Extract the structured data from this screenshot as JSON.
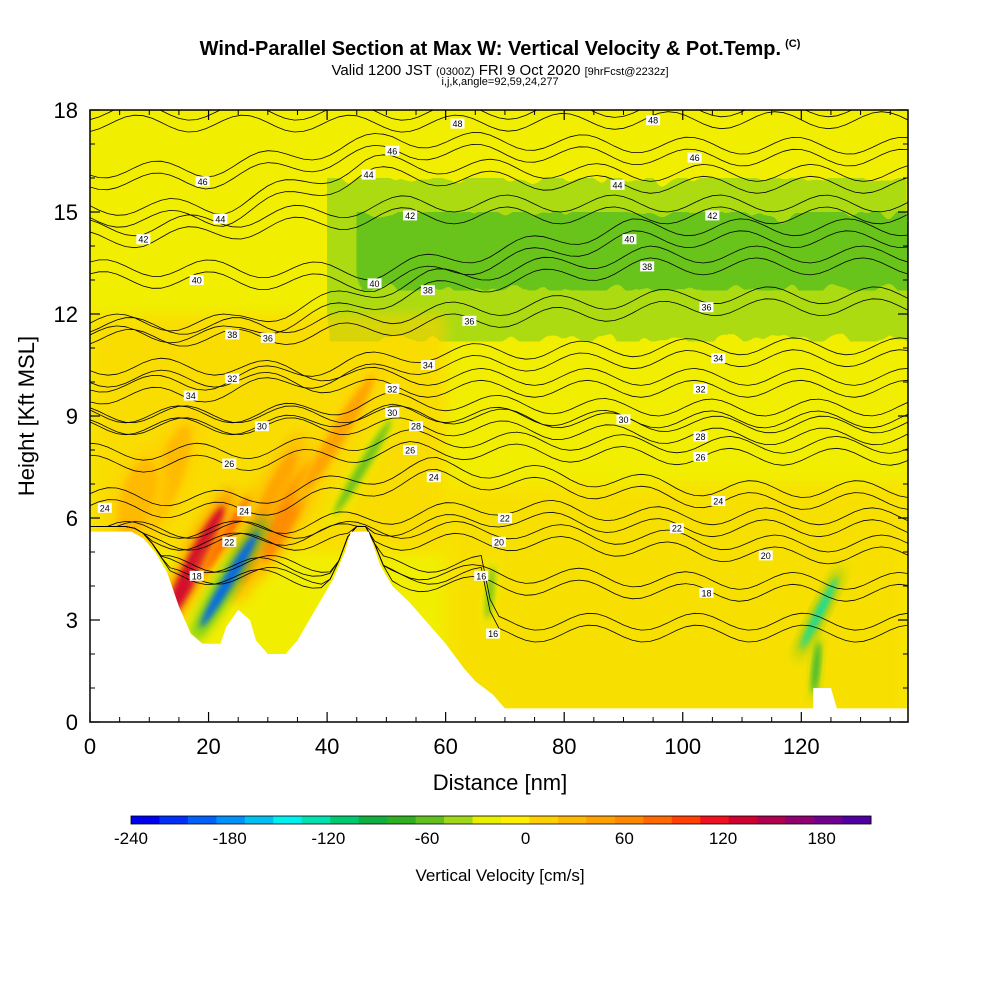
{
  "chart_data": {
    "type": "heatmap",
    "title": "Wind-Parallel Section at Max W: Vertical Velocity & Pot.Temp.",
    "title_mark": "(C)",
    "subtitle_parts": [
      "Valid 1200 JST ",
      "(0300Z)",
      " FRI 9 Oct 2020 ",
      "[9hrFcst@2232z]"
    ],
    "subtitle2": "i,j,k,angle=92,59,24,277",
    "xlabel": "Distance [nm]",
    "ylabel": "Height [Kft MSL]",
    "xlim": [
      0,
      138
    ],
    "ylim": [
      0,
      18
    ],
    "xticks": [
      0,
      20,
      40,
      60,
      80,
      100,
      120
    ],
    "yticks": [
      0,
      3,
      6,
      9,
      12,
      15,
      18
    ],
    "colorbar": {
      "label": "Vertical Velocity [cm/s]",
      "range": [
        -240,
        210
      ],
      "ticks": [
        -240,
        -180,
        -120,
        -60,
        0,
        60,
        120,
        180
      ],
      "colors": [
        "#0000f0",
        "#0030f8",
        "#0060f8",
        "#0090f8",
        "#00c0f0",
        "#00f0f0",
        "#00e0b0",
        "#00c870",
        "#10b040",
        "#30b020",
        "#60c020",
        "#a0d818",
        "#e8f000",
        "#ffee00",
        "#ffd000",
        "#ffb800",
        "#ffa000",
        "#ff8800",
        "#ff6800",
        "#ff4000",
        "#f01020",
        "#d00030",
        "#b00050",
        "#900070",
        "#700090",
        "#5000a0"
      ]
    },
    "terrain": [
      [
        0,
        0
      ],
      [
        0,
        5.6
      ],
      [
        7,
        5.6
      ],
      [
        9,
        5.4
      ],
      [
        11,
        5.0
      ],
      [
        13,
        4.4
      ],
      [
        15,
        3.4
      ],
      [
        17,
        2.6
      ],
      [
        19,
        2.3
      ],
      [
        22,
        2.3
      ],
      [
        23,
        2.8
      ],
      [
        25,
        3.3
      ],
      [
        27,
        3.0
      ],
      [
        28,
        2.4
      ],
      [
        30,
        2.0
      ],
      [
        33,
        2.0
      ],
      [
        35,
        2.4
      ],
      [
        37,
        3.0
      ],
      [
        39,
        3.6
      ],
      [
        41,
        4.2
      ],
      [
        43,
        5.0
      ],
      [
        44,
        5.6
      ],
      [
        47,
        5.6
      ],
      [
        49,
        4.6
      ],
      [
        51,
        4.0
      ],
      [
        54,
        3.5
      ],
      [
        57,
        2.9
      ],
      [
        60,
        2.3
      ],
      [
        63,
        1.6
      ],
      [
        65,
        1.2
      ],
      [
        68,
        0.8
      ],
      [
        70,
        0.4
      ],
      [
        122,
        0.4
      ],
      [
        122,
        1.0
      ],
      [
        125,
        1.0
      ],
      [
        126,
        0.4
      ],
      [
        138,
        0.4
      ],
      [
        138,
        0
      ]
    ],
    "updrafts": [
      {
        "x": 17.5,
        "y": 4.6,
        "w": 2.2,
        "h": 3.0,
        "value": 130,
        "tilt": 0.5
      },
      {
        "x": 23,
        "y": 5.5,
        "w": 1.2,
        "h": 2.0,
        "value": 80,
        "tilt": 0.6
      },
      {
        "x": 30,
        "y": 6.0,
        "w": 3.0,
        "h": 3.2,
        "value": 45,
        "tilt": 0.4
      },
      {
        "x": 33.5,
        "y": 6.2,
        "w": 2.5,
        "h": 2.5,
        "value": 55,
        "tilt": 0.5
      },
      {
        "x": 13,
        "y": 7.2,
        "w": 3.5,
        "h": 2.5,
        "value": 35,
        "tilt": 0.4
      },
      {
        "x": 42,
        "y": 8.5,
        "w": 2.0,
        "h": 3.0,
        "value": 40,
        "tilt": 0.6
      },
      {
        "x": 8,
        "y": 6.6,
        "w": 4.0,
        "h": 1.8,
        "value": 30,
        "tilt": 0.3
      }
    ],
    "downdrafts": [
      {
        "x": 23.5,
        "y": 4.2,
        "w": 1.3,
        "h": 2.5,
        "value": -200,
        "tilt": 0.6
      },
      {
        "x": 46,
        "y": 7.5,
        "w": 1.2,
        "h": 2.5,
        "value": -60,
        "tilt": 0.6
      },
      {
        "x": 123,
        "y": 3.2,
        "w": 0.9,
        "h": 1.8,
        "value": -120,
        "tilt": 0.5
      },
      {
        "x": 122.5,
        "y": 1.6,
        "w": 0.7,
        "h": 1.2,
        "value": -90,
        "tilt": 0.1
      },
      {
        "x": 67.5,
        "y": 3.8,
        "w": 0.8,
        "h": 1.2,
        "value": -50,
        "tilt": 0.1
      }
    ],
    "high_level_band": {
      "y_bottom": 11.2,
      "y_top": 16.0,
      "x_start": 40,
      "value": -40
    },
    "contours": [
      {
        "theta": 16,
        "label_points": [
          [
            66,
            4.3
          ],
          [
            68,
            2.6
          ]
        ]
      },
      {
        "theta": 18,
        "label_points": [
          [
            104,
            3.8
          ],
          [
            18,
            4.3
          ]
        ]
      },
      {
        "theta": 20,
        "label_points": [
          [
            69,
            5.3
          ],
          [
            114,
            4.9
          ]
        ]
      },
      {
        "theta": 22,
        "label_points": [
          [
            70,
            6.0
          ],
          [
            99,
            5.7
          ],
          [
            23.5,
            5.3
          ]
        ]
      },
      {
        "theta": 24,
        "label_points": [
          [
            58,
            7.2
          ],
          [
            106,
            6.5
          ],
          [
            26,
            6.2
          ],
          [
            2.5,
            6.3
          ]
        ]
      },
      {
        "theta": 26,
        "label_points": [
          [
            54,
            8.0
          ],
          [
            103,
            7.8
          ],
          [
            23.5,
            7.6
          ]
        ]
      },
      {
        "theta": 28,
        "label_points": [
          [
            55,
            8.7
          ],
          [
            103,
            8.4
          ]
        ]
      },
      {
        "theta": 30,
        "label_points": [
          [
            51,
            9.1
          ],
          [
            90,
            8.9
          ],
          [
            29,
            8.7
          ]
        ]
      },
      {
        "theta": 32,
        "label_points": [
          [
            51,
            9.8
          ],
          [
            103,
            9.8
          ],
          [
            24,
            10.1
          ]
        ]
      },
      {
        "theta": 34,
        "label_points": [
          [
            57,
            10.5
          ],
          [
            106,
            10.7
          ],
          [
            17,
            9.6
          ]
        ]
      },
      {
        "theta": 36,
        "label_points": [
          [
            30,
            11.3
          ],
          [
            64,
            11.8
          ],
          [
            104,
            12.2
          ]
        ]
      },
      {
        "theta": 38,
        "label_points": [
          [
            24,
            11.4
          ],
          [
            57,
            12.7
          ],
          [
            94,
            13.4
          ]
        ]
      },
      {
        "theta": 40,
        "label_points": [
          [
            18,
            13.0
          ],
          [
            48,
            12.9
          ],
          [
            91,
            14.2
          ]
        ]
      },
      {
        "theta": 42,
        "label_points": [
          [
            9,
            14.2
          ],
          [
            54,
            14.9
          ],
          [
            105,
            14.9
          ]
        ]
      },
      {
        "theta": 44,
        "label_points": [
          [
            22,
            14.8
          ],
          [
            47,
            16.1
          ],
          [
            89,
            15.8
          ]
        ]
      },
      {
        "theta": 46,
        "label_points": [
          [
            19,
            15.9
          ],
          [
            51,
            16.8
          ],
          [
            102,
            16.6
          ]
        ]
      },
      {
        "theta": 48,
        "label_points": [
          [
            62,
            17.6
          ],
          [
            95,
            17.7
          ]
        ]
      }
    ]
  }
}
